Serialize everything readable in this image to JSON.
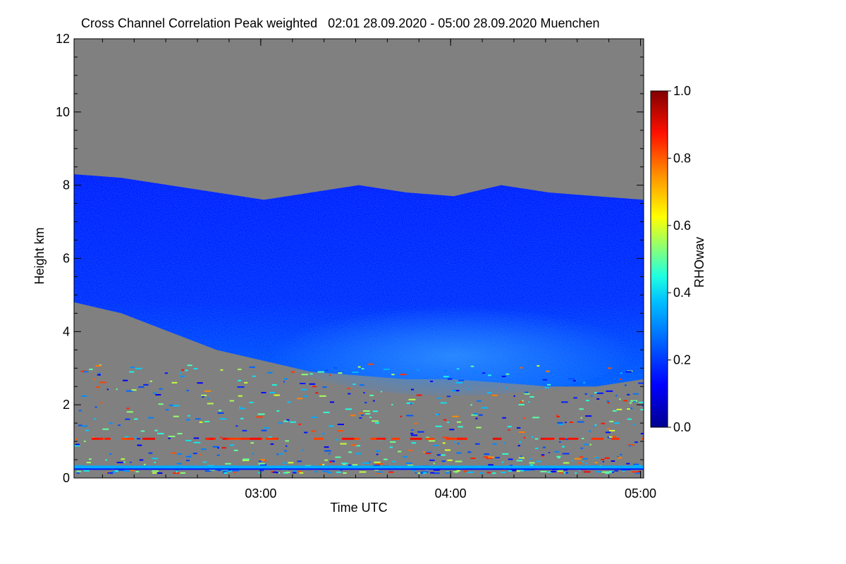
{
  "chart_data": {
    "type": "heatmap",
    "title": "Cross Channel Correlation Peak weighted   02:01 28.09.2020 - 05:00 28.09.2020 Muenchen",
    "xlabel": "Time UTC",
    "ylabel": "Height km",
    "colorbar_label": "RHOwav",
    "x_ticks": [
      "03:00",
      "04:00",
      "05:00"
    ],
    "y_ticks": [
      "0",
      "2",
      "4",
      "6",
      "8",
      "10",
      "12"
    ],
    "colorbar_ticks": [
      "0.0",
      "0.2",
      "0.4",
      "0.6",
      "0.8",
      "1.0"
    ],
    "xlim": [
      "02:01",
      "05:01"
    ],
    "ylim": [
      0,
      12
    ],
    "clim": [
      0.0,
      1.0
    ],
    "colormap": [
      "#00008f",
      "#0000ff",
      "#0080ff",
      "#00ffff",
      "#80ff80",
      "#ffff00",
      "#ff8000",
      "#ff0000",
      "#800000"
    ],
    "background_color": "#808080",
    "time_minutes": [
      0,
      15,
      30,
      45,
      60,
      75,
      90,
      105,
      120,
      135,
      150,
      165,
      180
    ],
    "cloud_top_km": [
      8.3,
      8.2,
      8.0,
      7.8,
      7.6,
      7.8,
      8.0,
      7.8,
      7.7,
      8.0,
      7.8,
      7.7,
      7.6
    ],
    "cloud_base_km": [
      4.8,
      4.5,
      4.0,
      3.5,
      3.2,
      2.9,
      2.8,
      2.7,
      2.7,
      2.6,
      2.5,
      2.5,
      2.7
    ],
    "cloud_rho_range": [
      0.1,
      0.3
    ],
    "near_surface_layer_km": 0.3,
    "near_surface_layer_rho": 0.35
  }
}
